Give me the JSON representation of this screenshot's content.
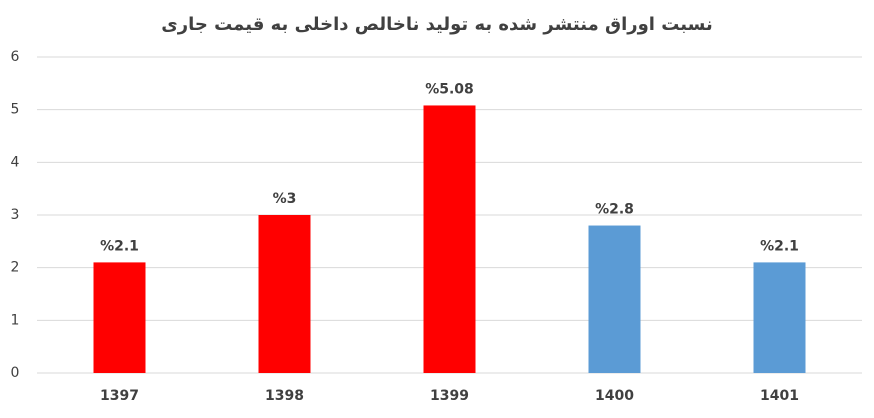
{
  "chart_data": {
    "type": "bar",
    "title": "نسبت اوراق منتشر شده به تولید ناخالص داخلی به قیمت جاری",
    "categories": [
      "1397",
      "1398",
      "1399",
      "1400",
      "1401"
    ],
    "values": [
      2.1,
      3,
      5.08,
      2.8,
      2.1
    ],
    "value_labels": [
      "%2.1",
      "%3",
      "%5.08",
      "%2.8",
      "%2.1"
    ],
    "colors": [
      "#ff0000",
      "#ff0000",
      "#ff0000",
      "#5b9bd5",
      "#5b9bd5"
    ],
    "ylim": [
      0,
      6
    ],
    "yticks": [
      0,
      1,
      2,
      3,
      4,
      5,
      6
    ],
    "grid": true
  }
}
